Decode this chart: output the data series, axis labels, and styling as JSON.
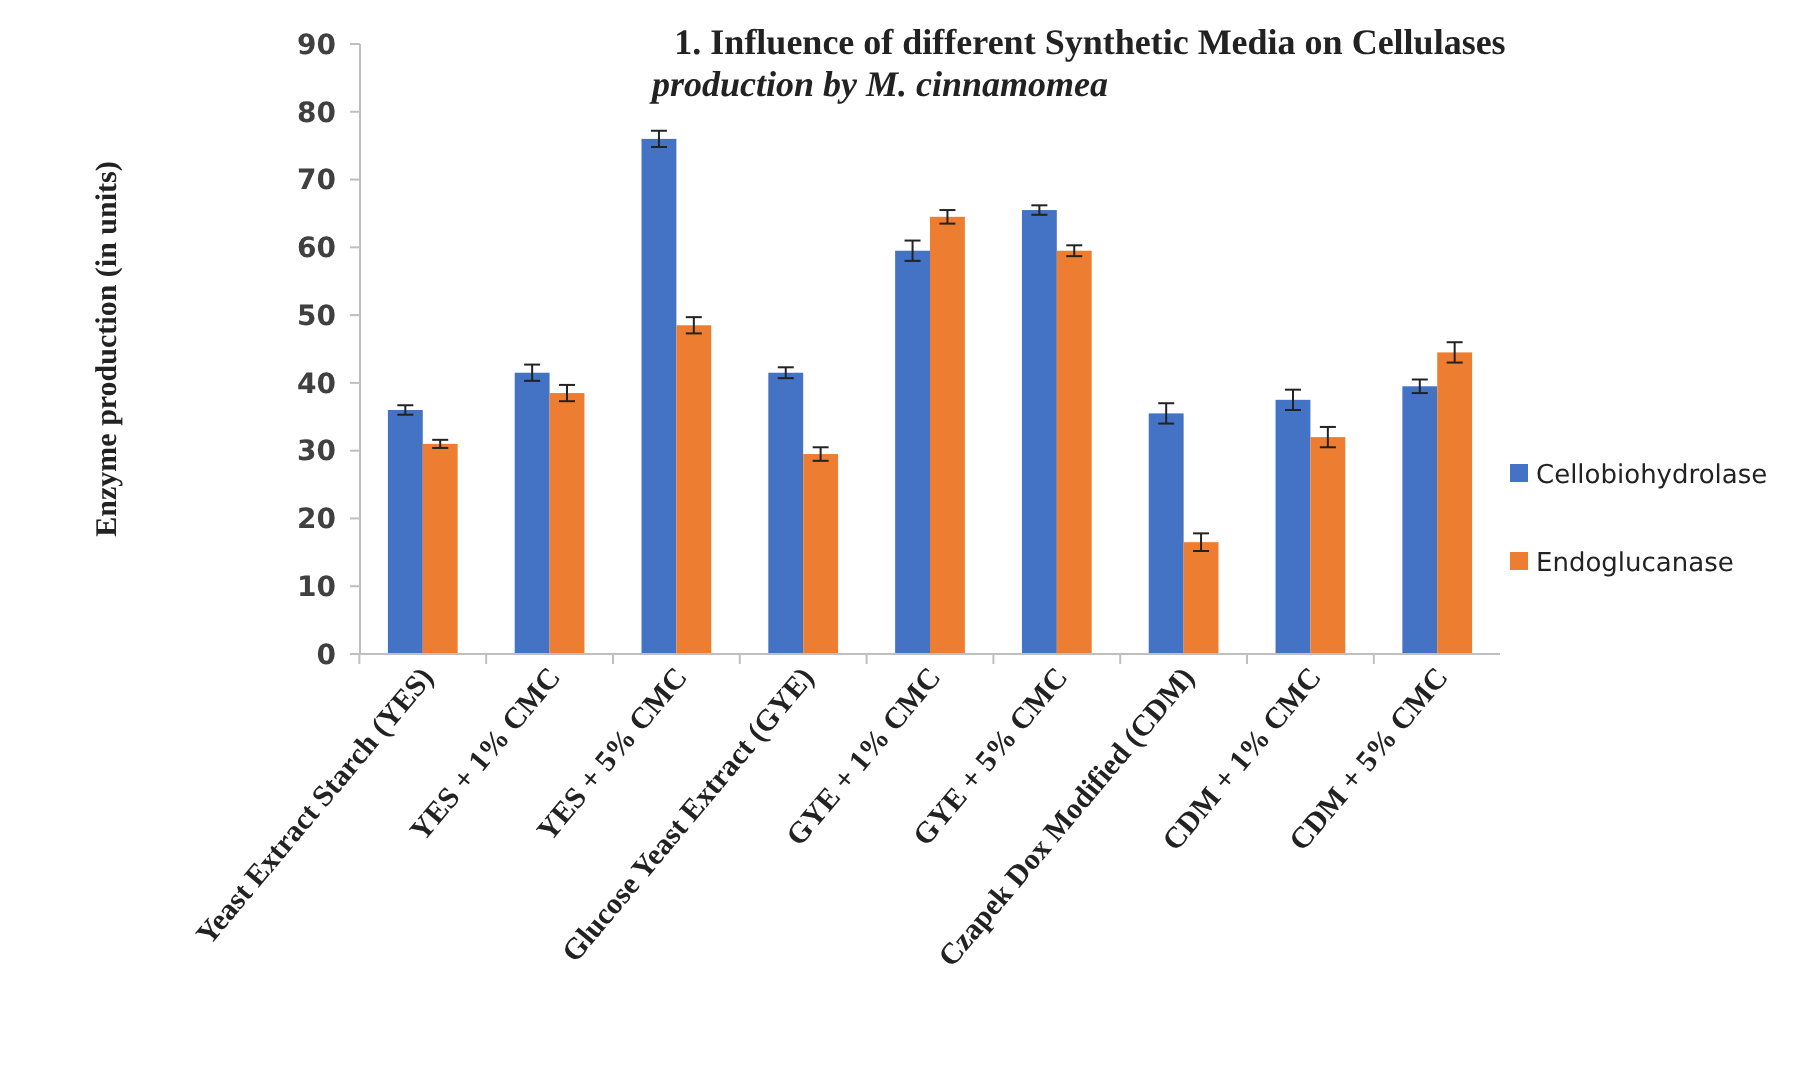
{
  "chart_data": {
    "type": "bar",
    "title": "1. Influence of different Synthetic Media on  Cellulases production by M. cinnamomea",
    "ylabel": "Enzyme production (in units)",
    "categories": [
      "Yeast Extract Starch (YES)",
      "YES + 1% CMC",
      "YES + 5% CMC",
      "Glucose Yeast Extract (GYE)",
      "GYE + 1% CMC",
      "GYE + 5% CMC",
      "Czapek Dox Modified (CDM)",
      "CDM + 1% CMC",
      "CDM + 5% CMC"
    ],
    "series": [
      {
        "name": "Cellobiohydrolase",
        "color": "#4472c4",
        "values": [
          36,
          41.5,
          76,
          41.5,
          59.5,
          65.5,
          35.5,
          37.5,
          39.5
        ],
        "errors": [
          0.7,
          1.2,
          1.2,
          0.8,
          1.5,
          0.7,
          1.5,
          1.5,
          1
        ]
      },
      {
        "name": "Endoglucanase",
        "color": "#ed7d31",
        "values": [
          31,
          38.5,
          48.5,
          29.5,
          64.5,
          59.5,
          16.5,
          32,
          44.5
        ],
        "errors": [
          0.6,
          1.2,
          1.2,
          1,
          1,
          0.8,
          1.3,
          1.5,
          1.5
        ]
      }
    ],
    "ylim": [
      0,
      90
    ],
    "yticks": [
      0,
      10,
      20,
      30,
      40,
      50,
      60,
      70,
      80,
      90
    ],
    "grid": false,
    "legend": "right"
  }
}
